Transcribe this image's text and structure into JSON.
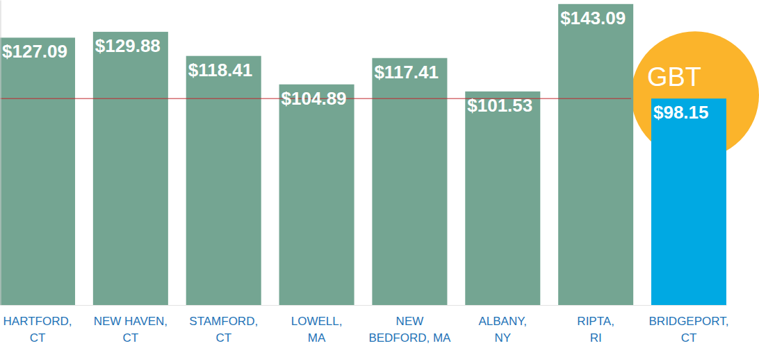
{
  "chart_data": {
    "type": "bar",
    "categories": [
      "HARTFORD,\nCT",
      "NEW HAVEN,\nCT",
      "STAMFORD,\nCT",
      "LOWELL,\nMA",
      "NEW\nBEDFORD, MA",
      "ALBANY,\nNY",
      "RIPTA,\nRI",
      "BRIDGEPORT,\nCT"
    ],
    "values": [
      127.09,
      129.88,
      118.41,
      104.89,
      117.41,
      101.53,
      143.09,
      98.15
    ],
    "value_labels": [
      "$127.09",
      "$129.88",
      "$118.41",
      "$104.89",
      "$117.41",
      "$101.53",
      "$143.09",
      "$98.15"
    ],
    "colors": [
      "#74a592",
      "#74a592",
      "#74a592",
      "#74a592",
      "#74a592",
      "#74a592",
      "#74a592",
      "#00a9e3"
    ],
    "ylim": [
      0,
      145
    ],
    "data_labels": true,
    "tick_labels": "x",
    "annotations": [
      {
        "text": "GBT",
        "category": "BRIDGEPORT,\nCT"
      }
    ]
  }
}
